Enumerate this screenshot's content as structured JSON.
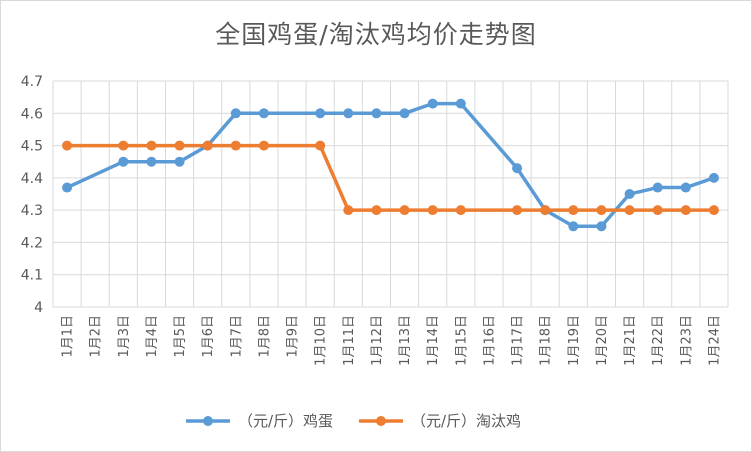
{
  "chart_data": {
    "type": "line",
    "title": "全国鸡蛋/淘汰鸡均价走势图",
    "xlabel": "",
    "ylabel": "",
    "categories": [
      "1月1日",
      "1月2日",
      "1月3日",
      "1月4日",
      "1月5日",
      "1月6日",
      "1月7日",
      "1月8日",
      "1月9日",
      "1月10日",
      "1月11日",
      "1月12日",
      "1月13日",
      "1月14日",
      "1月15日",
      "1月16日",
      "1月17日",
      "1月18日",
      "1月19日",
      "1月20日",
      "1月21日",
      "1月22日",
      "1月23日",
      "1月24日"
    ],
    "ylim": [
      4,
      4.7
    ],
    "yticks": [
      "4",
      "4.1",
      "4.2",
      "4.3",
      "4.4",
      "4.5",
      "4.6",
      "4.7"
    ],
    "grid": true,
    "legend_position": "bottom",
    "series": [
      {
        "name": "（元/斤）鸡蛋",
        "color": "#5b9bd5",
        "values": [
          4.37,
          null,
          4.45,
          4.45,
          4.45,
          4.5,
          4.6,
          4.6,
          null,
          4.6,
          4.6,
          4.6,
          4.6,
          4.63,
          4.63,
          null,
          4.43,
          4.3,
          4.25,
          4.25,
          4.35,
          4.37,
          4.37,
          4.4
        ]
      },
      {
        "name": "（元/斤）淘汰鸡",
        "color": "#ed7d31",
        "values": [
          4.5,
          null,
          4.5,
          4.5,
          4.5,
          4.5,
          4.5,
          4.5,
          null,
          4.5,
          4.3,
          4.3,
          4.3,
          4.3,
          4.3,
          null,
          4.3,
          4.3,
          4.3,
          4.3,
          4.3,
          4.3,
          4.3,
          4.3
        ]
      }
    ]
  }
}
